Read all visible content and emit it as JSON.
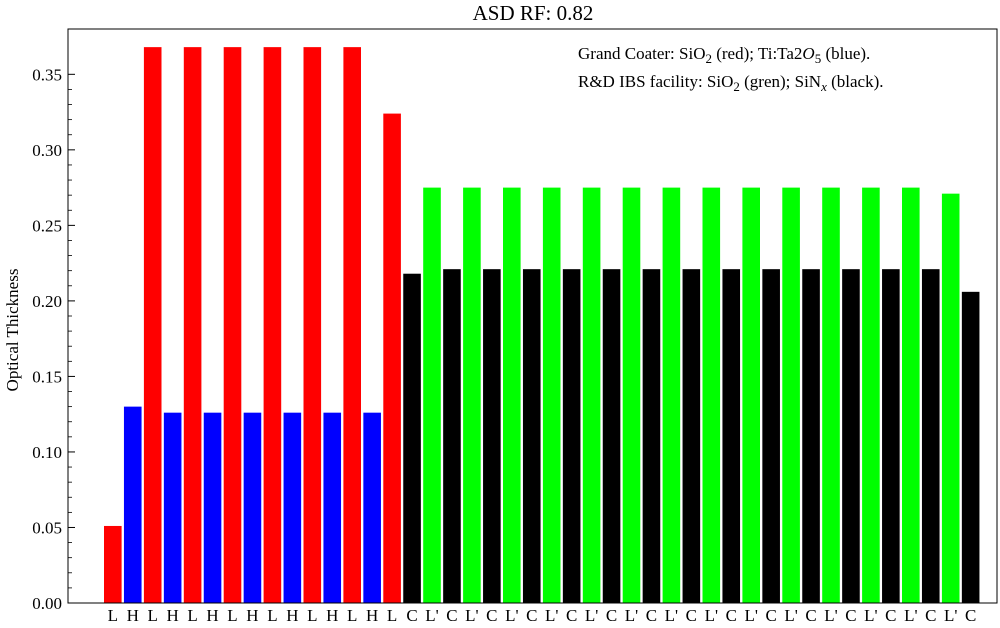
{
  "chart_data": {
    "type": "bar",
    "title": "ASD RF: 0.82",
    "ylabel": "Optical  Thickness",
    "xlabel": "",
    "ylim": [
      0,
      0.38
    ],
    "yticks": [
      0.0,
      0.05,
      0.1,
      0.15,
      0.2,
      0.25,
      0.3,
      0.35
    ],
    "ytick_labels": [
      "0.00",
      "0.05",
      "0.10",
      "0.15",
      "0.20",
      "0.25",
      "0.30",
      "0.35"
    ],
    "legend_position": "top-right",
    "legend_lines": [
      {
        "parts": [
          {
            "t": "Grand Coater:  SiO"
          },
          {
            "t": "2",
            "sub": true
          },
          {
            "t": " (red);  Ti:Ta"
          },
          {
            "t": "2"
          },
          {
            "t": "O",
            "italic": true
          },
          {
            "t": "5",
            "sub": true
          },
          {
            "t": " (blue)."
          }
        ]
      },
      {
        "parts": [
          {
            "t": "R&D IBS facility: SiO"
          },
          {
            "t": "2",
            "sub": true
          },
          {
            "t": " (gren);  SiN"
          },
          {
            "t": "x",
            "sub": true,
            "italic": true
          },
          {
            "t": " (black)."
          }
        ]
      }
    ],
    "colors": {
      "L": "#ff0000",
      "H": "#0000ff",
      "L'": "#00ff00",
      "C": "#000000"
    },
    "layers": [
      {
        "label": "L",
        "value": 0.051
      },
      {
        "label": "H",
        "value": 0.13
      },
      {
        "label": "L",
        "value": 0.368
      },
      {
        "label": "H",
        "value": 0.126
      },
      {
        "label": "L",
        "value": 0.368
      },
      {
        "label": "H",
        "value": 0.126
      },
      {
        "label": "L",
        "value": 0.368
      },
      {
        "label": "H",
        "value": 0.126
      },
      {
        "label": "L",
        "value": 0.368
      },
      {
        "label": "H",
        "value": 0.126
      },
      {
        "label": "L",
        "value": 0.368
      },
      {
        "label": "H",
        "value": 0.126
      },
      {
        "label": "L",
        "value": 0.368
      },
      {
        "label": "H",
        "value": 0.126
      },
      {
        "label": "L",
        "value": 0.324
      },
      {
        "label": "C",
        "value": 0.218
      },
      {
        "label": "L'",
        "value": 0.275
      },
      {
        "label": "C",
        "value": 0.221
      },
      {
        "label": "L'",
        "value": 0.275
      },
      {
        "label": "C",
        "value": 0.221
      },
      {
        "label": "L'",
        "value": 0.275
      },
      {
        "label": "C",
        "value": 0.221
      },
      {
        "label": "L'",
        "value": 0.275
      },
      {
        "label": "C",
        "value": 0.221
      },
      {
        "label": "L'",
        "value": 0.275
      },
      {
        "label": "C",
        "value": 0.221
      },
      {
        "label": "L'",
        "value": 0.275
      },
      {
        "label": "C",
        "value": 0.221
      },
      {
        "label": "L'",
        "value": 0.275
      },
      {
        "label": "C",
        "value": 0.221
      },
      {
        "label": "L'",
        "value": 0.275
      },
      {
        "label": "C",
        "value": 0.221
      },
      {
        "label": "L'",
        "value": 0.275
      },
      {
        "label": "C",
        "value": 0.221
      },
      {
        "label": "L'",
        "value": 0.275
      },
      {
        "label": "C",
        "value": 0.221
      },
      {
        "label": "L'",
        "value": 0.275
      },
      {
        "label": "C",
        "value": 0.221
      },
      {
        "label": "L'",
        "value": 0.275
      },
      {
        "label": "C",
        "value": 0.221
      },
      {
        "label": "L'",
        "value": 0.275
      },
      {
        "label": "C",
        "value": 0.221
      },
      {
        "label": "L'",
        "value": 0.271
      },
      {
        "label": "C",
        "value": 0.206
      }
    ]
  }
}
